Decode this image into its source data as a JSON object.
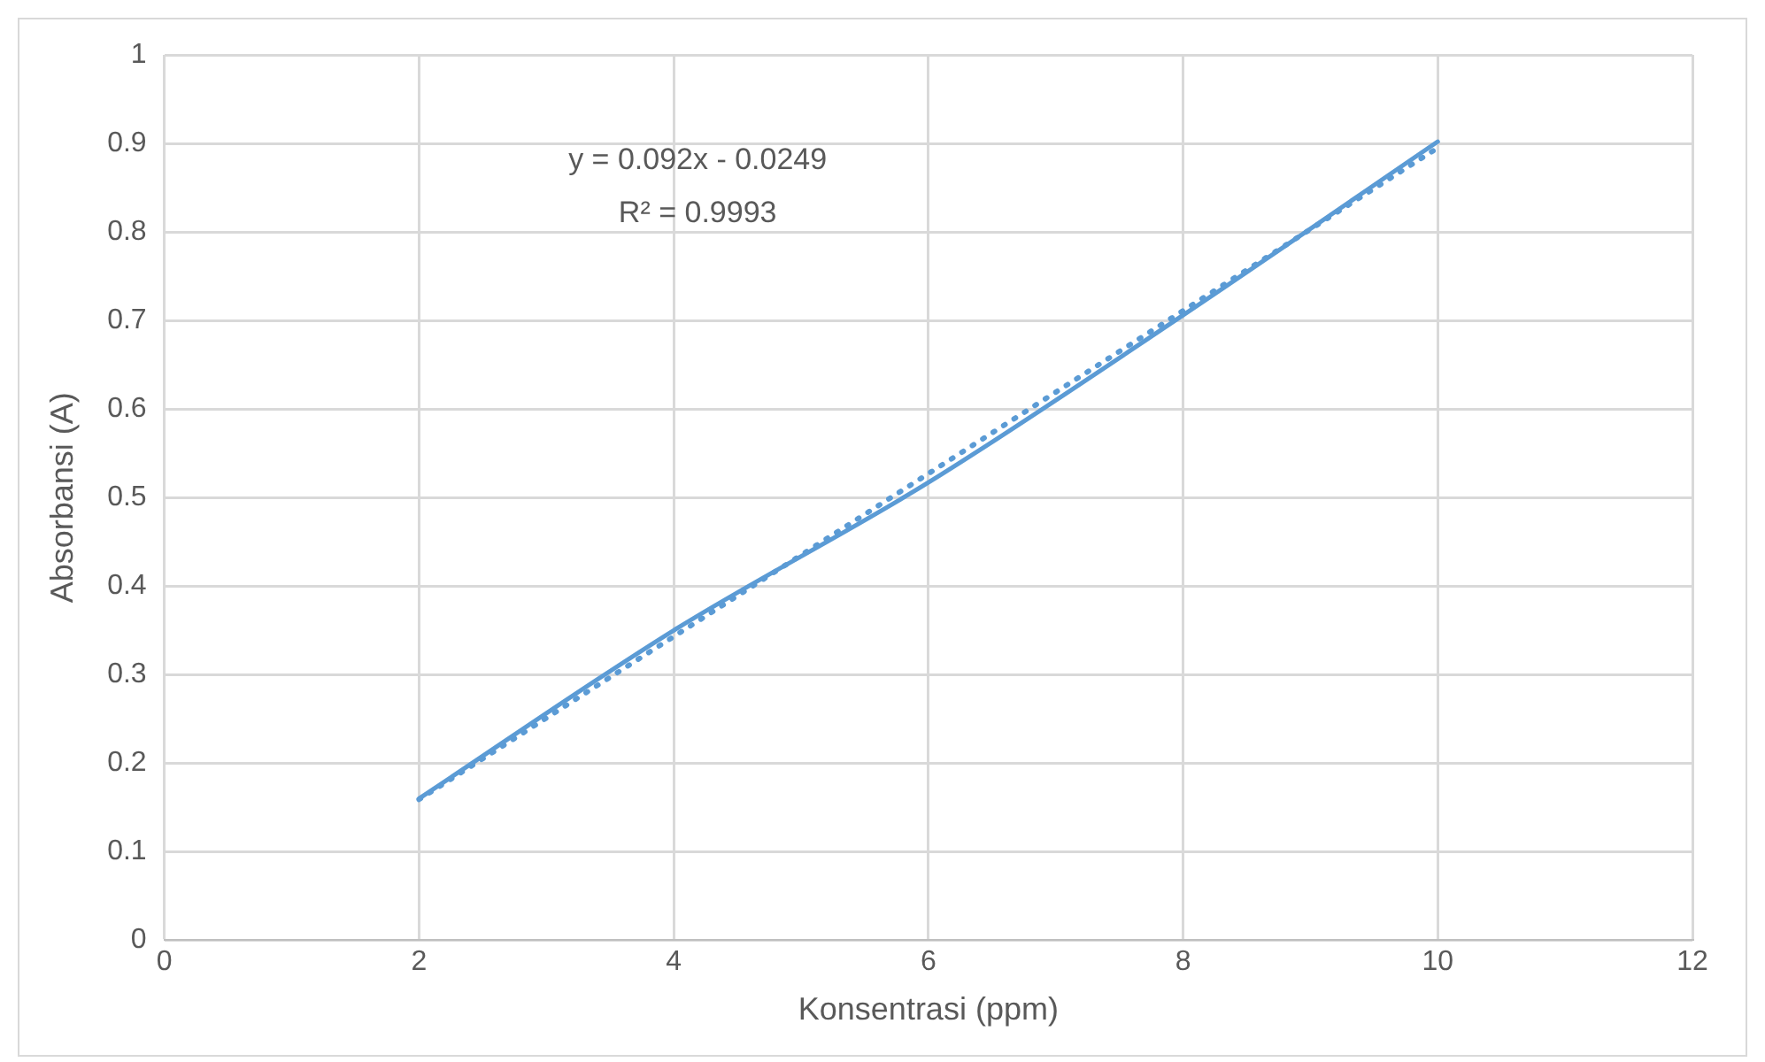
{
  "chart_data": {
    "type": "scatter",
    "xlabel": "Konsentrasi (ppm)",
    "ylabel": "Absorbansi (A)",
    "xlim": [
      0,
      12
    ],
    "xticks": [
      0,
      2,
      4,
      6,
      8,
      10,
      12
    ],
    "ylim": [
      0,
      1
    ],
    "yticks": [
      0,
      0.1,
      0.2,
      0.3,
      0.4,
      0.5,
      0.6,
      0.7,
      0.8,
      0.9,
      1
    ],
    "grid": true,
    "legend": false,
    "marker": "none",
    "series": [
      {
        "type": "line",
        "color": "#5b9bd5",
        "line_style": "solid",
        "x": [
          2,
          4,
          6,
          8,
          10
        ],
        "values": [
          0.16,
          0.35,
          0.517,
          0.706,
          0.902
        ]
      },
      {
        "type": "line",
        "color": "#5b9bd5",
        "line_style": "dotted",
        "x": [
          2,
          10
        ],
        "values": [
          0.159,
          0.895
        ]
      }
    ],
    "annotations": [
      "y = 0.092x - 0.0249",
      "R² = 0.9993"
    ]
  }
}
